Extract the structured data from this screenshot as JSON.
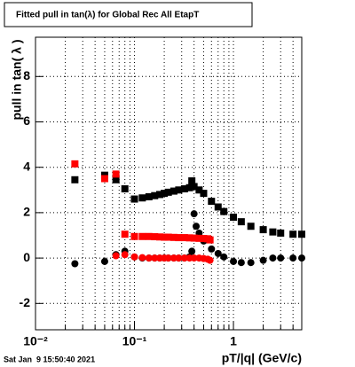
{
  "chart_data": {
    "type": "scatter",
    "title": "Fitted pull in tan(λ) for Global Rec All EtapT",
    "x_label": "pT/|q| (GeV/c)",
    "y_label": "pull in tan( λ )",
    "footer": "Sat Jan  9 15:50:40 2021",
    "xscale": "log",
    "xlim": [
      0.01,
      4.9
    ],
    "ylim": [
      -3.16,
      9.73
    ],
    "xticks": [
      {
        "value": 0.01,
        "label": "10⁻²"
      },
      {
        "value": 0.1,
        "label": "10⁻¹"
      },
      1
    ],
    "x_minor_ticks": [
      0.02,
      0.03,
      0.04,
      0.05,
      0.06,
      0.07,
      0.08,
      0.09,
      0.2,
      0.3,
      0.4,
      0.5,
      0.6,
      0.7,
      0.8,
      0.9,
      2,
      3,
      4
    ],
    "yticks": [
      -2,
      0,
      2,
      4,
      6,
      8
    ],
    "grid": true,
    "series": [
      {
        "color": "#000000",
        "marker": "square",
        "x": [
          0.025,
          0.05,
          0.065,
          0.08,
          0.1,
          0.12,
          0.14,
          0.16,
          0.18,
          0.2,
          0.22,
          0.25,
          0.28,
          0.32,
          0.36,
          0.38,
          0.4,
          0.45,
          0.5,
          0.6,
          0.7,
          0.8,
          1.0,
          1.2,
          1.5,
          2,
          2.5,
          3,
          4,
          4.9
        ],
        "values": [
          3.45,
          3.65,
          3.45,
          3.05,
          2.6,
          2.65,
          2.7,
          2.75,
          2.8,
          2.85,
          2.9,
          2.95,
          3.0,
          3.05,
          3.1,
          3.4,
          3.15,
          3.0,
          2.85,
          2.5,
          2.25,
          2.05,
          1.8,
          1.6,
          1.4,
          1.25,
          1.15,
          1.1,
          1.05,
          1.05
        ]
      },
      {
        "color": "#000000",
        "marker": "circle",
        "x": [
          0.025,
          0.05,
          0.065,
          0.08,
          0.1,
          0.12,
          0.14,
          0.16,
          0.18,
          0.2,
          0.22,
          0.25,
          0.28,
          0.32,
          0.36,
          0.38,
          0.4,
          0.42,
          0.45,
          0.5,
          0.6,
          0.7,
          0.8,
          1.0,
          1.2,
          1.5,
          2,
          2.5,
          3,
          4,
          4.9
        ],
        "values": [
          -0.25,
          -0.15,
          0.15,
          0.3,
          0.05,
          0.0,
          0.0,
          0.0,
          0.0,
          0.0,
          0.0,
          0.0,
          0.0,
          0.0,
          0.05,
          0.3,
          1.95,
          1.4,
          1.1,
          0.75,
          0.4,
          0.2,
          0.05,
          -0.15,
          -0.2,
          -0.2,
          -0.1,
          0.0,
          0.0,
          0.0,
          0.0
        ]
      },
      {
        "color": "#ff0000",
        "marker": "square",
        "x": [
          0.025,
          0.05,
          0.065,
          0.08,
          0.1,
          0.12,
          0.14,
          0.16,
          0.18,
          0.2,
          0.22,
          0.25,
          0.28,
          0.32,
          0.36,
          0.4,
          0.45,
          0.5,
          0.55,
          0.58
        ],
        "values": [
          4.15,
          3.5,
          3.7,
          1.05,
          0.95,
          0.95,
          0.95,
          0.94,
          0.93,
          0.92,
          0.92,
          0.91,
          0.9,
          0.9,
          0.89,
          0.88,
          0.87,
          0.86,
          0.85,
          0.8
        ]
      },
      {
        "color": "#ff0000",
        "marker": "circle",
        "x": [
          0.065,
          0.08,
          0.1,
          0.12,
          0.14,
          0.16,
          0.18,
          0.2,
          0.22,
          0.25,
          0.28,
          0.32,
          0.36,
          0.4,
          0.45,
          0.5,
          0.55,
          0.58
        ],
        "values": [
          0.1,
          0.15,
          0.05,
          0.02,
          0.0,
          0.0,
          0.0,
          0.0,
          0.0,
          0.0,
          0.0,
          0.0,
          0.0,
          0.0,
          0.0,
          -0.02,
          -0.05,
          -0.1
        ]
      }
    ]
  }
}
